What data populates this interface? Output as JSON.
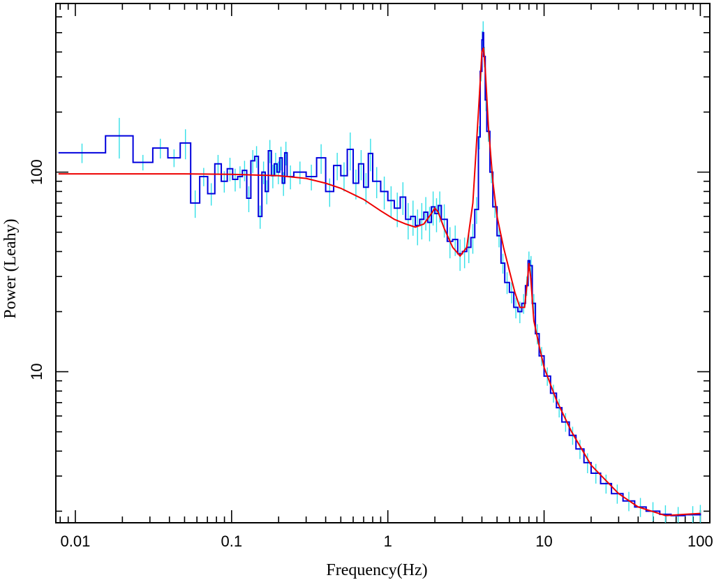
{
  "chart_data": {
    "type": "line",
    "title": "",
    "xlabel": "Frequency(Hz)",
    "ylabel": "Power (Leahy)",
    "xscale": "log",
    "yscale": "log",
    "xlim": [
      0.0075,
      115
    ],
    "ylim": [
      1.75,
      700
    ],
    "grid": false,
    "legend": "none",
    "x_tick_labels": [
      {
        "value": 0.01,
        "label": "0.01"
      },
      {
        "value": 0.1,
        "label": "0.1"
      },
      {
        "value": 1,
        "label": "1"
      },
      {
        "value": 10,
        "label": "10"
      },
      {
        "value": 100,
        "label": "100"
      }
    ],
    "y_tick_labels": [
      {
        "value": 10,
        "label": "10"
      },
      {
        "value": 100,
        "label": "100"
      }
    ],
    "series": [
      {
        "kind": "data-histogram-with-errors",
        "color": "#0000dd",
        "error_color": "#33e0e8",
        "x": [
          0.0078,
          0.0156,
          0.0234,
          0.0313,
          0.0391,
          0.0469,
          0.0547,
          0.0625,
          0.0703,
          0.0781,
          0.0859,
          0.0938,
          0.1016,
          0.1094,
          0.1172,
          0.125,
          0.1328,
          0.1406,
          0.1484,
          0.1563,
          0.1641,
          0.1719,
          0.1797,
          0.1875,
          0.1953,
          0.2031,
          0.2109,
          0.2188,
          0.2266,
          0.25,
          0.3,
          0.35,
          0.4,
          0.45,
          0.5,
          0.55,
          0.6,
          0.65,
          0.7,
          0.75,
          0.8,
          0.9,
          1.0,
          1.1,
          1.2,
          1.3,
          1.4,
          1.5,
          1.6,
          1.7,
          1.8,
          1.9,
          2.0,
          2.1,
          2.2,
          2.4,
          2.6,
          2.8,
          3.0,
          3.2,
          3.4,
          3.6,
          3.8,
          3.9,
          4.0,
          4.05,
          4.1,
          4.2,
          4.3,
          4.5,
          4.7,
          5.0,
          5.3,
          5.6,
          6.0,
          6.4,
          6.8,
          7.2,
          7.6,
          7.9,
          8.1,
          8.4,
          8.8,
          9.3,
          10.0,
          11.0,
          12.0,
          13.0,
          14.5,
          16.0,
          18.0,
          20.0,
          23.0,
          27.0,
          32.0,
          38.0,
          45.0,
          55.0,
          65.0,
          80.0,
          100.0
        ],
        "y": [
          125,
          152,
          112,
          132,
          118,
          140,
          70,
          95,
          78,
          110,
          90,
          104,
          92,
          95,
          102,
          74,
          114,
          120,
          60,
          100,
          80,
          128,
          96,
          110,
          100,
          118,
          88,
          125,
          95,
          100,
          95,
          118,
          80,
          108,
          96,
          130,
          88,
          110,
          84,
          124,
          90,
          80,
          72,
          66,
          75,
          58,
          60,
          54,
          58,
          63,
          56,
          67,
          62,
          68,
          58,
          45,
          46,
          39,
          40,
          42,
          47,
          65,
          150,
          320,
          460,
          500,
          380,
          230,
          160,
          100,
          67,
          48,
          35,
          28,
          25,
          21,
          20,
          22,
          27,
          36,
          34,
          22,
          15.5,
          12,
          9.5,
          7.8,
          6.6,
          5.6,
          4.8,
          4.1,
          3.5,
          3.1,
          2.75,
          2.45,
          2.25,
          2.1,
          2.0,
          1.93,
          1.9,
          1.92,
          1.95
        ],
        "yerr": [
          14,
          35,
          10,
          15,
          12,
          24,
          11,
          10,
          10,
          12,
          11,
          14,
          12,
          12,
          12,
          11,
          15,
          15,
          8,
          13,
          11,
          17,
          13,
          15,
          13,
          16,
          12,
          17,
          13,
          13,
          14,
          20,
          13,
          17,
          16,
          28,
          15,
          19,
          15,
          23,
          16,
          15,
          13,
          13,
          14,
          12,
          12,
          11,
          12,
          12,
          11,
          13,
          12,
          12,
          11,
          8,
          8,
          7,
          7,
          7,
          8,
          10,
          20,
          35,
          50,
          70,
          45,
          28,
          18,
          12,
          8,
          6,
          4,
          3.5,
          3,
          2.5,
          2.5,
          2.5,
          3,
          4,
          4,
          2.5,
          1.8,
          1.3,
          1,
          0.8,
          0.7,
          0.6,
          0.5,
          0.45,
          0.4,
          0.35,
          0.3,
          0.27,
          0.25,
          0.23,
          0.22,
          0.21,
          0.2,
          0.2,
          0.2
        ]
      },
      {
        "kind": "model",
        "color": "#ee0000",
        "x": [
          0.0078,
          0.02,
          0.05,
          0.1,
          0.2,
          0.3,
          0.4,
          0.5,
          0.7,
          0.9,
          1.1,
          1.3,
          1.5,
          1.7,
          1.9,
          2.0,
          2.1,
          2.3,
          2.6,
          2.9,
          3.2,
          3.5,
          3.8,
          4.0,
          4.1,
          4.2,
          4.4,
          4.7,
          5.0,
          5.5,
          6.0,
          6.5,
          7.0,
          7.5,
          7.8,
          8.0,
          8.2,
          8.6,
          9.2,
          10.0,
          12.0,
          15.0,
          20.0,
          30.0,
          40.0,
          60.0,
          80.0,
          100.0
        ],
        "y": [
          98,
          98,
          98,
          97.5,
          96,
          93,
          88,
          83,
          73,
          64,
          58,
          55,
          53,
          55,
          62,
          66,
          63,
          52,
          42,
          38,
          42,
          70,
          200,
          400,
          420,
          330,
          170,
          90,
          60,
          42,
          32,
          25,
          21,
          21,
          28,
          35,
          30,
          18,
          14,
          10.5,
          7.2,
          5.0,
          3.4,
          2.45,
          2.1,
          1.9,
          1.93,
          1.95
        ]
      }
    ]
  }
}
